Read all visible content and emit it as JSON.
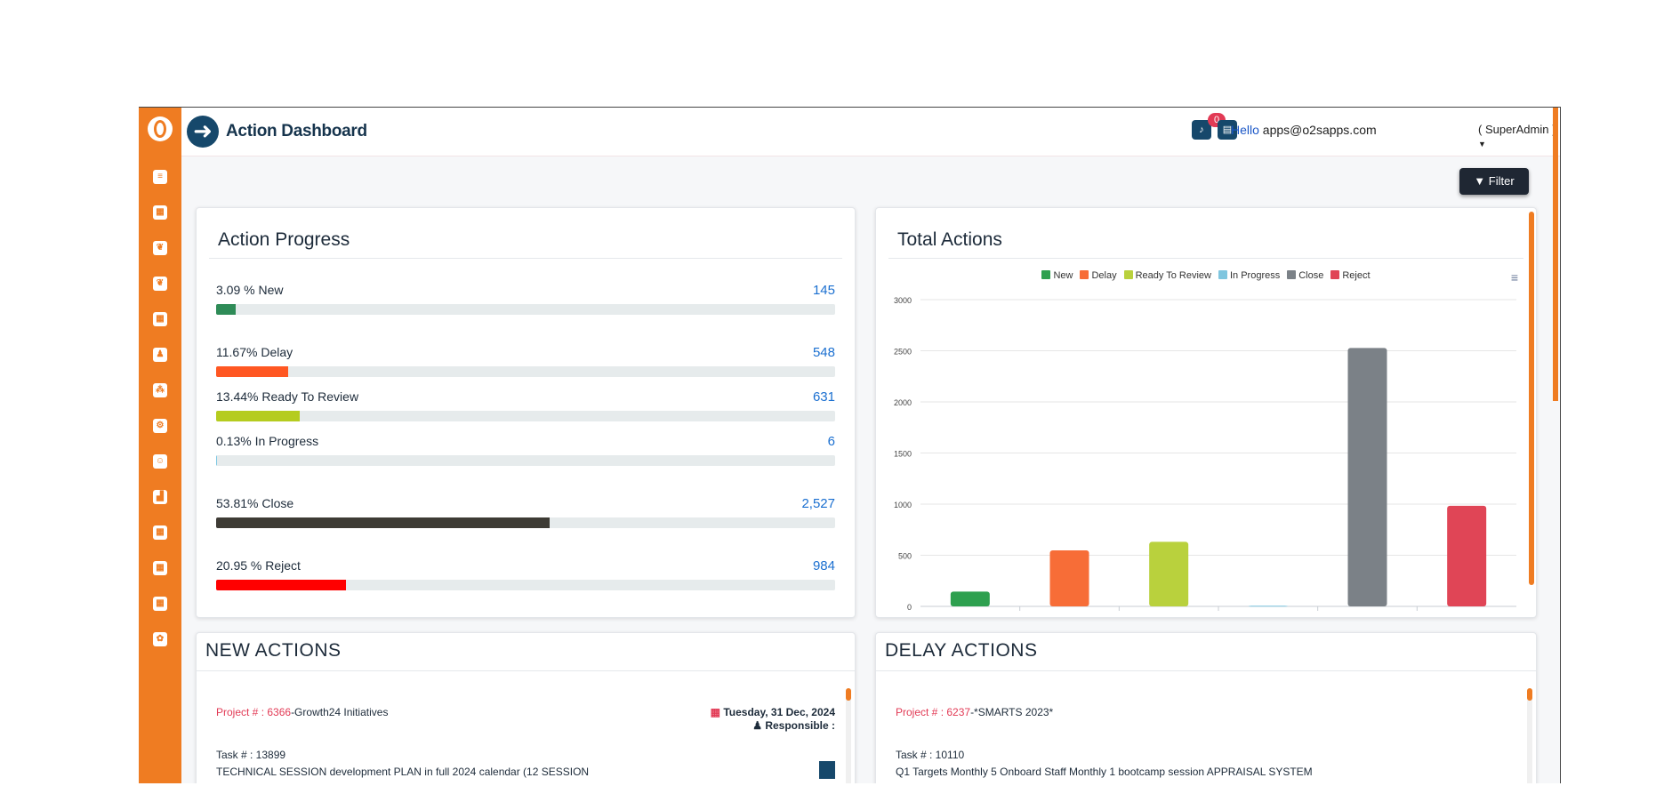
{
  "header": {
    "title": "Action Dashboard",
    "notification_count": "0",
    "hello_word": "Hello",
    "user_email": "apps@o2sapps.com",
    "role": "( SuperAdmin )"
  },
  "toolbar": {
    "filter_label": "Filter"
  },
  "progress": {
    "title": "Action Progress",
    "rows": [
      {
        "label": "3.09 % New",
        "count": "145",
        "fraction": 0.0309,
        "color": "#2e8b57"
      },
      {
        "label": "11.67% Delay",
        "count": "548",
        "fraction": 0.1167,
        "color": "#ff5722"
      },
      {
        "label": "13.44% Ready To Review",
        "count": "631",
        "fraction": 0.1344,
        "color": "#b5cc1f"
      },
      {
        "label": "0.13% In Progress",
        "count": "6",
        "fraction": 0.0013,
        "color": "#7ec8e3"
      },
      {
        "label": "53.81% Close",
        "count": "2,527",
        "fraction": 0.5381,
        "color": "#3e3b35"
      },
      {
        "label": "20.95 % Reject",
        "count": "984",
        "fraction": 0.2095,
        "color": "#ff0000"
      }
    ]
  },
  "chart_data": {
    "type": "bar",
    "title": "Total Actions",
    "categories": [
      "New",
      "Delay",
      "Ready To Review",
      "In Progress",
      "Close",
      "Reject"
    ],
    "values": [
      145,
      548,
      631,
      6,
      2527,
      984
    ],
    "colors": [
      "#2ea04f",
      "#f76d37",
      "#b9d13d",
      "#7fc6df",
      "#7b8187",
      "#e04556"
    ],
    "ylim": [
      0,
      3000
    ],
    "yticks": [
      "0",
      "500",
      "1000",
      "1500",
      "2000",
      "2500",
      "3000"
    ],
    "grid": true,
    "legend": "top"
  },
  "new_actions": {
    "title": "NEW ACTIONS",
    "project_prefix": "Project # : 6366",
    "project_name": "-Growth24 Initiatives",
    "date": "Tuesday, 31 Dec, 2024",
    "responsible": "Responsible :",
    "task": "Task # : 13899",
    "task_desc": "TECHNICAL SESSION development PLAN in full 2024 calendar (12 SESSION"
  },
  "delay_actions": {
    "title": "DELAY ACTIONS",
    "project_prefix": "Project # : 6237",
    "project_name": "-*SMARTS 2023*",
    "task": "Task # : 10110",
    "task_desc": "Q1 Targets Monthly 5 Onboard Staff Monthly 1 bootcamp session APPRAISAL SYSTEM"
  },
  "icons": {
    "sidebar": [
      "menu-icon",
      "table-icon",
      "leaf-icon",
      "leaf-icon",
      "table-icon",
      "user-gear-icon",
      "sitemap-icon",
      "gears-icon",
      "users-icon",
      "signal-icon",
      "table-icon",
      "table-icon",
      "table-icon",
      "settings-icon"
    ]
  }
}
